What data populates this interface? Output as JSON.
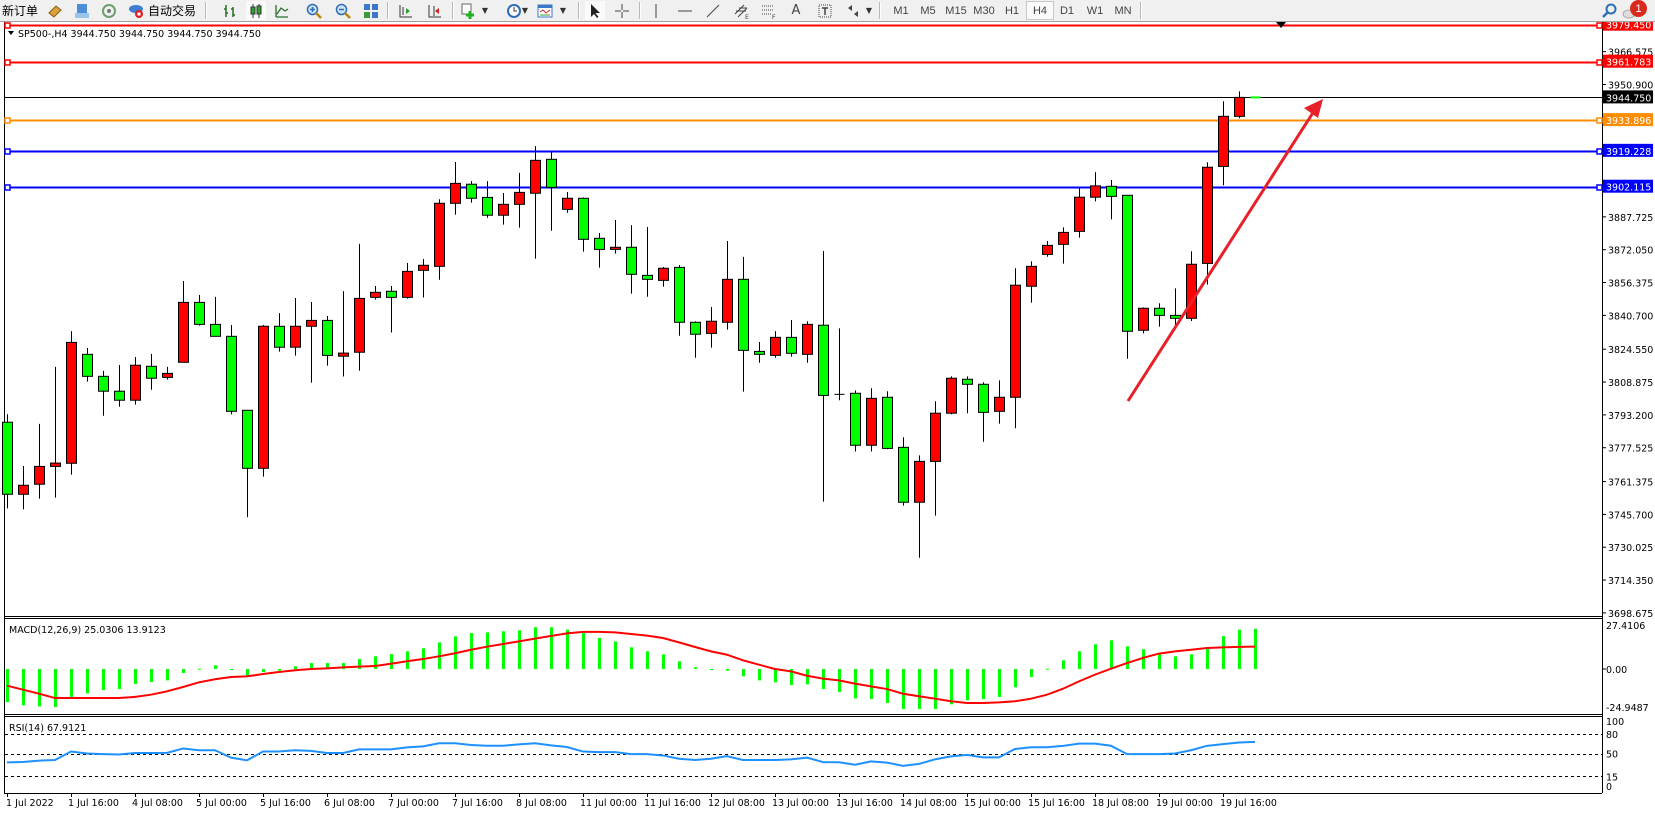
{
  "toolbar": {
    "new_order_label": "新订单",
    "auto_trading_label": "自动交易",
    "icons": [
      "market-watch-icon",
      "terminal-icon",
      "signals-icon",
      "auto-trading-icon",
      "bar-chart-icon",
      "candlestick-icon",
      "line-chart-icon",
      "zoom-in-icon",
      "zoom-out-icon",
      "tile-windows-icon",
      "auto-scroll-icon",
      "chart-shift-icon",
      "add-indicator-icon",
      "periods-clock-icon",
      "templates-icon",
      "cursor-icon",
      "crosshair-icon",
      "vertical-line-icon",
      "horizontal-line-icon",
      "trendline-icon",
      "equidistant-channel-icon",
      "fibonacci-icon",
      "text-icon",
      "text-label-icon",
      "arrows-icon",
      "search-icon",
      "notifications-icon"
    ],
    "text_tool_label": "A",
    "periods": [
      "M1",
      "M5",
      "M15",
      "M30",
      "H1",
      "H4",
      "D1",
      "W1",
      "MN"
    ],
    "active_period": "H4",
    "notification_count": "1"
  },
  "chart": {
    "header": "SP500-,H4  3944.750 3944.750 3944.750 3944.750",
    "bull_color": "#ff0000",
    "bear_color": "#00ff00",
    "current_price": 3944.75,
    "current_price_label": "3944.750",
    "levels": [
      {
        "price": 3979.45,
        "label": "3979.450",
        "color": "#ff0000"
      },
      {
        "price": 3961.783,
        "label": "3961.783",
        "color": "#ff0000"
      },
      {
        "price": 3933.896,
        "label": "3933.896",
        "color": "#ff8c00"
      },
      {
        "price": 3919.228,
        "label": "3919.228",
        "color": "#0000ff"
      },
      {
        "price": 3902.115,
        "label": "3902.115",
        "color": "#0000ff"
      }
    ],
    "trend_arrow_color": "#e8202a",
    "price_ticks": [
      "3966.575",
      "3950.900",
      "3887.725",
      "3872.050",
      "3856.375",
      "3840.700",
      "3824.550",
      "3808.875",
      "3793.200",
      "3777.525",
      "3761.375",
      "3745.700",
      "3730.025",
      "3714.350",
      "3698.675"
    ],
    "time_labels": [
      "1 Jul 2022",
      "1 Jul 16:00",
      "4 Jul 08:00",
      "5 Jul 00:00",
      "5 Jul 16:00",
      "6 Jul 08:00",
      "7 Jul 00:00",
      "7 Jul 16:00",
      "8 Jul 08:00",
      "11 Jul 00:00",
      "11 Jul 16:00",
      "12 Jul 08:00",
      "13 Jul 00:00",
      "13 Jul 16:00",
      "14 Jul 08:00",
      "15 Jul 00:00",
      "15 Jul 16:00",
      "18 Jul 08:00",
      "19 Jul 00:00",
      "19 Jul 16:00"
    ]
  },
  "macd": {
    "label": "MACD(12,26,9) 25.0306 13.9123",
    "axis_labels": [
      "27.4106",
      "0.00",
      "-24.9487"
    ],
    "histogram_color": "#00ff00",
    "signal_color": "#ff0000"
  },
  "rsi": {
    "label": "RSI(14) 67.9121",
    "axis_labels": [
      "100",
      "80",
      "50",
      "15",
      "0"
    ],
    "levels": [
      80,
      50,
      15
    ],
    "line_color": "#1e90ff"
  },
  "chart_data": {
    "type": "candlestick",
    "symbol": "SP500-",
    "timeframe": "H4",
    "ylim": [
      3698.675,
      3979.45
    ],
    "ohlc_order": [
      "open",
      "high",
      "low",
      "close"
    ],
    "candles": [
      [
        3789.7,
        3793.5,
        3748.6,
        3755.3
      ],
      [
        3755.3,
        3768.8,
        3748.1,
        3759.6
      ],
      [
        3760.1,
        3788.9,
        3753.2,
        3768.6
      ],
      [
        3768.6,
        3816.1,
        3753.7,
        3770.2
      ],
      [
        3770.1,
        3833.2,
        3764.7,
        3827.8
      ],
      [
        3822.1,
        3825.1,
        3809.1,
        3811.6
      ],
      [
        3811.6,
        3814.2,
        3792.8,
        3804.5
      ],
      [
        3804.5,
        3817.0,
        3797.1,
        3800.2
      ],
      [
        3800.2,
        3820.8,
        3798.1,
        3816.9
      ],
      [
        3816.4,
        3822.3,
        3805.2,
        3810.7
      ],
      [
        3811.1,
        3816.1,
        3810.0,
        3813.0
      ],
      [
        3818.3,
        3857.1,
        3818.3,
        3846.9
      ],
      [
        3846.9,
        3850.4,
        3835.8,
        3836.4
      ],
      [
        3836.4,
        3849.5,
        3830.7,
        3830.7
      ],
      [
        3830.7,
        3836.1,
        3793.5,
        3794.9
      ],
      [
        3795.4,
        3795.4,
        3744.4,
        3767.7
      ],
      [
        3767.7,
        3836.1,
        3763.7,
        3835.5
      ],
      [
        3835.5,
        3841.8,
        3823.4,
        3825.5
      ],
      [
        3825.5,
        3849.0,
        3821.5,
        3835.5
      ],
      [
        3835.5,
        3847.1,
        3808.6,
        3838.3
      ],
      [
        3838.3,
        3840.4,
        3816.7,
        3821.6
      ],
      [
        3821.2,
        3852.3,
        3811.5,
        3822.7
      ],
      [
        3823.1,
        3874.8,
        3814.3,
        3848.8
      ],
      [
        3849.3,
        3854.7,
        3848.2,
        3851.7
      ],
      [
        3852.2,
        3854.7,
        3832.5,
        3849.3
      ],
      [
        3849.3,
        3865.7,
        3848.7,
        3861.7
      ],
      [
        3862.2,
        3867.6,
        3849.2,
        3864.6
      ],
      [
        3864.1,
        3896.1,
        3857.7,
        3894.2
      ],
      [
        3894.2,
        3913.9,
        3888.8,
        3903.7
      ],
      [
        3903.3,
        3904.8,
        3894.5,
        3896.6
      ],
      [
        3897.0,
        3904.8,
        3887.3,
        3888.5
      ],
      [
        3888.5,
        3899.1,
        3884.0,
        3893.7
      ],
      [
        3893.7,
        3908.7,
        3882.6,
        3899.4
      ],
      [
        3899.0,
        3921.5,
        3867.8,
        3914.7
      ],
      [
        3915.2,
        3918.7,
        3881.1,
        3901.8
      ],
      [
        3891.3,
        3899.6,
        3889.7,
        3896.6
      ],
      [
        3896.6,
        3897.0,
        3871.1,
        3877.0
      ],
      [
        3877.5,
        3880.0,
        3863.5,
        3872.2
      ],
      [
        3872.2,
        3886.2,
        3870.2,
        3873.2
      ],
      [
        3873.2,
        3883.8,
        3851.1,
        3860.3
      ],
      [
        3859.8,
        3882.9,
        3849.6,
        3857.9
      ],
      [
        3857.4,
        3863.8,
        3854.4,
        3863.2
      ],
      [
        3863.6,
        3864.7,
        3831.0,
        3837.4
      ],
      [
        3837.4,
        3837.9,
        3820.5,
        3831.7
      ],
      [
        3832.1,
        3844.7,
        3825.3,
        3837.9
      ],
      [
        3837.4,
        3876.2,
        3833.9,
        3857.9
      ],
      [
        3857.9,
        3868.6,
        3804.3,
        3824.0
      ],
      [
        3823.5,
        3828.0,
        3818.1,
        3822.1
      ],
      [
        3821.6,
        3833.2,
        3820.5,
        3830.2
      ],
      [
        3830.2,
        3838.5,
        3821.0,
        3822.6
      ],
      [
        3822.1,
        3837.9,
        3818.1,
        3836.4
      ],
      [
        3836.0,
        3871.4,
        3751.8,
        3802.5
      ],
      [
        3803.0,
        3834.5,
        3800.2,
        3803.0
      ],
      [
        3803.5,
        3804.9,
        3775.7,
        3778.7
      ],
      [
        3778.7,
        3805.9,
        3775.7,
        3801.1
      ],
      [
        3801.6,
        3804.5,
        3776.8,
        3777.2
      ],
      [
        3777.7,
        3782.5,
        3749.9,
        3751.5
      ],
      [
        3751.5,
        3773.9,
        3725.0,
        3771.0
      ],
      [
        3771.0,
        3799.7,
        3745.1,
        3794.0
      ],
      [
        3794.0,
        3811.6,
        3793.5,
        3810.7
      ],
      [
        3810.2,
        3811.6,
        3794.0,
        3807.8
      ],
      [
        3807.8,
        3808.8,
        3780.4,
        3794.4
      ],
      [
        3794.9,
        3809.7,
        3789.0,
        3801.6
      ],
      [
        3801.6,
        3863.2,
        3786.8,
        3855.1
      ],
      [
        3854.6,
        3866.5,
        3846.8,
        3864.1
      ],
      [
        3869.8,
        3876.2,
        3868.7,
        3874.1
      ],
      [
        3874.6,
        3882.7,
        3865.4,
        3880.3
      ],
      [
        3880.8,
        3901.3,
        3877.8,
        3897.1
      ],
      [
        3897.1,
        3909.1,
        3895.1,
        3902.5
      ],
      [
        3902.3,
        3905.3,
        3886.5,
        3897.5
      ],
      [
        3898.0,
        3898.0,
        3820.0,
        3833.1
      ],
      [
        3833.6,
        3844.5,
        3832.1,
        3844.1
      ],
      [
        3844.1,
        3846.5,
        3835.3,
        3840.7
      ],
      [
        3840.7,
        3853.6,
        3835.3,
        3839.3
      ],
      [
        3839.3,
        3871.3,
        3838.0,
        3865.1
      ],
      [
        3865.5,
        3913.8,
        3855.4,
        3911.4
      ],
      [
        3911.8,
        3942.9,
        3902.8,
        3935.7
      ],
      [
        3935.7,
        3947.6,
        3934.8,
        3944.75
      ],
      [
        3944.75,
        3944.75,
        3944.75,
        3944.75
      ]
    ],
    "macd_histogram": [
      -20.6,
      -22.6,
      -23.3,
      -23.7,
      -17.4,
      -15.2,
      -13.1,
      -12.5,
      -9.3,
      -8.1,
      -7.1,
      -2.5,
      0.2,
      2.3,
      -0.4,
      -4.6,
      -1.9,
      -1.0,
      1.7,
      3.7,
      3.7,
      3.7,
      6.2,
      7.9,
      9.3,
      11.0,
      12.9,
      16.6,
      20.3,
      22.4,
      22.8,
      23.5,
      24.1,
      26.0,
      26.0,
      24.5,
      22.4,
      19.3,
      17.2,
      13.5,
      11.0,
      9.1,
      4.8,
      1.0,
      -0.4,
      -1.0,
      -4.6,
      -7.1,
      -8.3,
      -10.0,
      -9.6,
      -12.5,
      -14.3,
      -18.3,
      -18.7,
      -21.2,
      -24.9,
      -24.9,
      -24.9,
      -22.0,
      -19.5,
      -18.7,
      -17.4,
      -11.4,
      -5.0,
      0.2,
      5.4,
      11.0,
      15.4,
      17.9,
      14.1,
      12.3,
      9.8,
      7.9,
      9.1,
      13.5,
      20.5,
      24.5,
      25.03
    ],
    "macd_signal": [
      -10.4,
      -12.9,
      -15.4,
      -18.1,
      -18.1,
      -18.1,
      -18.1,
      -18.1,
      -17.4,
      -16.0,
      -13.9,
      -11.2,
      -8.3,
      -6.4,
      -5.0,
      -4.6,
      -3.1,
      -1.9,
      -0.8,
      0,
      0.4,
      1.0,
      1.5,
      1.9,
      3.3,
      4.8,
      6.2,
      7.9,
      9.8,
      12.0,
      13.9,
      15.6,
      17.2,
      18.9,
      20.6,
      22.2,
      23.1,
      23.1,
      22.8,
      21.8,
      20.8,
      19.3,
      16.6,
      13.7,
      11.0,
      8.9,
      5.4,
      2.7,
      0,
      -1.5,
      -4.2,
      -6.0,
      -7.1,
      -9.1,
      -10.8,
      -12.5,
      -15.4,
      -17.0,
      -18.5,
      -20.1,
      -21.2,
      -21.2,
      -20.8,
      -20.1,
      -18.5,
      -16.0,
      -12.3,
      -7.7,
      -3.5,
      0.2,
      3.7,
      6.9,
      9.6,
      11.0,
      12.0,
      13.1,
      13.5,
      13.8,
      13.91
    ],
    "macd_range": [
      -24.9487,
      27.4106
    ],
    "rsi": [
      36.4,
      37,
      39.1,
      40,
      53,
      50,
      49,
      48.5,
      50.8,
      50.8,
      51,
      57.6,
      55,
      55,
      43.6,
      39.5,
      53,
      53,
      55,
      54,
      50.8,
      50.8,
      56.3,
      56.3,
      56.3,
      59.5,
      61,
      65.8,
      65.8,
      63,
      61.9,
      62,
      64,
      65.8,
      62.5,
      60,
      53,
      52.2,
      52.2,
      49,
      49,
      47,
      42,
      40,
      42,
      45.9,
      40,
      40,
      40,
      41,
      43.6,
      36.8,
      36.5,
      32.7,
      37.8,
      36,
      30.9,
      34,
      41,
      45.5,
      47.8,
      44,
      44,
      57,
      59.6,
      59.6,
      61.8,
      65.1,
      65.1,
      62,
      49,
      49,
      49,
      50,
      55,
      61.8,
      64.4,
      67,
      67.91
    ],
    "rsi_range": [
      0,
      100
    ]
  }
}
